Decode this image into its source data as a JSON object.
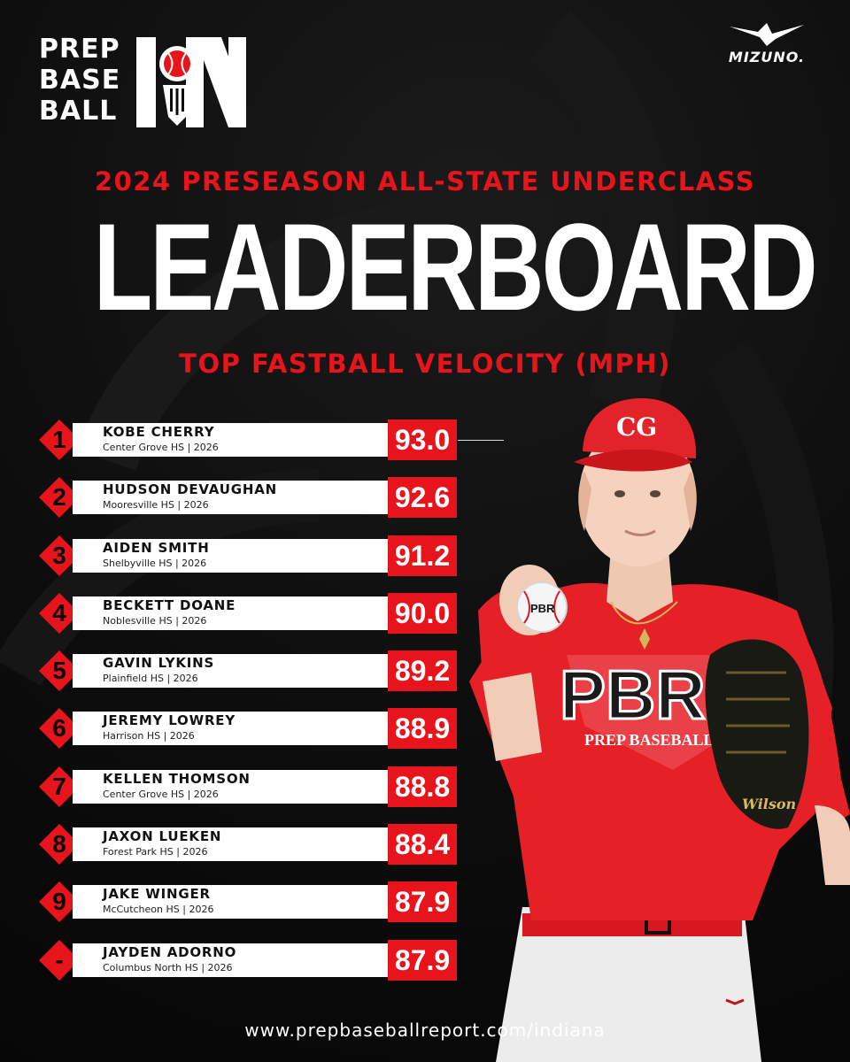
{
  "brand": {
    "logo_lines": [
      "PREP",
      "BASE",
      "BALL"
    ],
    "state_mark": "IN",
    "sponsor": "MIZUNO."
  },
  "header": {
    "kicker": "2024 PRESEASON ALL-STATE UNDERCLASS",
    "title": "LEADERBOARD",
    "subtitle": "TOP FASTBALL VELOCITY (MPH)"
  },
  "leaderboard": [
    {
      "rank": "1",
      "name": "KOBE CHERRY",
      "school": "Center Grove HS | 2026",
      "velocity": "93.0"
    },
    {
      "rank": "2",
      "name": "HUDSON DEVAUGHAN",
      "school": "Mooresville HS | 2026",
      "velocity": "92.6"
    },
    {
      "rank": "3",
      "name": "AIDEN SMITH",
      "school": "Shelbyville HS | 2026",
      "velocity": "91.2"
    },
    {
      "rank": "4",
      "name": "BECKETT DOANE",
      "school": "Noblesville HS | 2026",
      "velocity": "90.0"
    },
    {
      "rank": "5",
      "name": "GAVIN LYKINS",
      "school": "Plainfield HS | 2026",
      "velocity": "89.2"
    },
    {
      "rank": "6",
      "name": "JEREMY LOWREY",
      "school": "Harrison HS | 2026",
      "velocity": "88.9"
    },
    {
      "rank": "7",
      "name": "KELLEN THOMSON",
      "school": "Center Grove HS | 2026",
      "velocity": "88.8"
    },
    {
      "rank": "8",
      "name": "JAXON LUEKEN",
      "school": "Forest Park HS | 2026",
      "velocity": "88.4"
    },
    {
      "rank": "9",
      "name": "JAKE WINGER",
      "school": "McCutcheon HS | 2026",
      "velocity": "87.9"
    },
    {
      "rank": "-",
      "name": "JAYDEN ADORNO",
      "school": "Columbus North HS | 2026",
      "velocity": "87.9"
    }
  ],
  "player_photo": {
    "cap_logo": "CG",
    "ball_logo": "PBR",
    "jersey_logo": "PBR",
    "jersey_text": "PREP BASEBALL RE",
    "glove_brand": "Wilson"
  },
  "footer": {
    "url": "www.prepbaseballreport.com/indiana"
  },
  "colors": {
    "accent": "#e8141c",
    "background": "#0b0b0b",
    "text": "#ffffff"
  }
}
